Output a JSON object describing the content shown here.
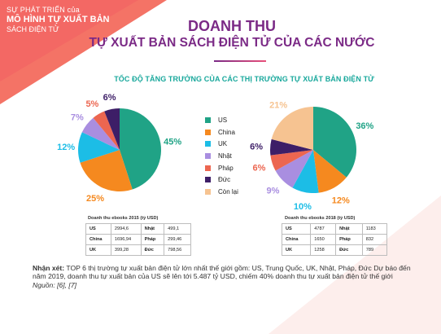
{
  "colors": {
    "us": "#20a386",
    "china": "#f5891f",
    "uk": "#1cbde6",
    "japan": "#a98ee0",
    "france": "#ec6650",
    "germany": "#3d1e67",
    "rest": "#f6c391",
    "accent": "#f26a5a",
    "title": "#7b2a86",
    "subtitle": "#19a89c"
  },
  "corner": {
    "line1": "SỰ PHÁT TRIỂN của",
    "line2": "MÔ HÌNH TỰ XUẤT BẢN",
    "line3": "SÁCH ĐIỆN TỬ"
  },
  "header": {
    "title": "DOANH THU",
    "subtitle": "TỰ XUẤT BẢN SÁCH ĐIỆN TỬ CỦA CÁC NƯỚC"
  },
  "chart_data": {
    "type": "pie",
    "title": "TỐC ĐỘ TĂNG TRƯỞNG CỦA CÁC THỊ TRƯỜNG TỰ XUẤT BẢN ĐIỆN TỬ",
    "categories": [
      "US",
      "China",
      "UK",
      "Nhật",
      "Pháp",
      "Đức",
      "Còn lại"
    ],
    "series": [
      {
        "values": [
          45,
          25,
          12,
          7,
          5,
          6,
          0
        ],
        "labels": [
          "45%",
          "25%",
          "12%",
          "7%",
          "5%",
          "6%",
          ""
        ]
      },
      {
        "values": [
          36,
          12,
          10,
          9,
          6,
          6,
          21
        ],
        "labels": [
          "36%",
          "12%",
          "10%",
          "9%",
          "6%",
          "6%",
          "21%"
        ]
      }
    ],
    "legend_position": "center"
  },
  "tables": [
    {
      "caption": "Doanh thu ebooks 2015 (tỷ USD)",
      "rows": [
        [
          "US",
          "2994,6",
          "Nhật",
          "499,1"
        ],
        [
          "China",
          "1696,94",
          "Pháp",
          "299,46"
        ],
        [
          "UK",
          "399,28",
          "Đức",
          "798,56"
        ]
      ]
    },
    {
      "caption": "Doanh thu ebooks 2018 (tỷ USD)",
      "rows": [
        [
          "US",
          "4787",
          "Nhật",
          "1183"
        ],
        [
          "China",
          "1650",
          "Pháp",
          "832"
        ],
        [
          "UK",
          "1258",
          "Đức",
          "789"
        ]
      ]
    }
  ],
  "note": {
    "label": "Nhận xét:",
    "text": " TOP 6 thị trường tự xuất bản điện tử lớn nhất thế giới gồm: US, Trung Quốc, UK, Nhật, Pháp, Đức Dự báo đến năm 2019, doanh thu tự xuất bản của US sẽ lên tới 5.487 tỷ USD, chiếm 40% doanh thu tự xuất bản điện tử thế giới",
    "source": "Nguồn: [6], [7]"
  }
}
